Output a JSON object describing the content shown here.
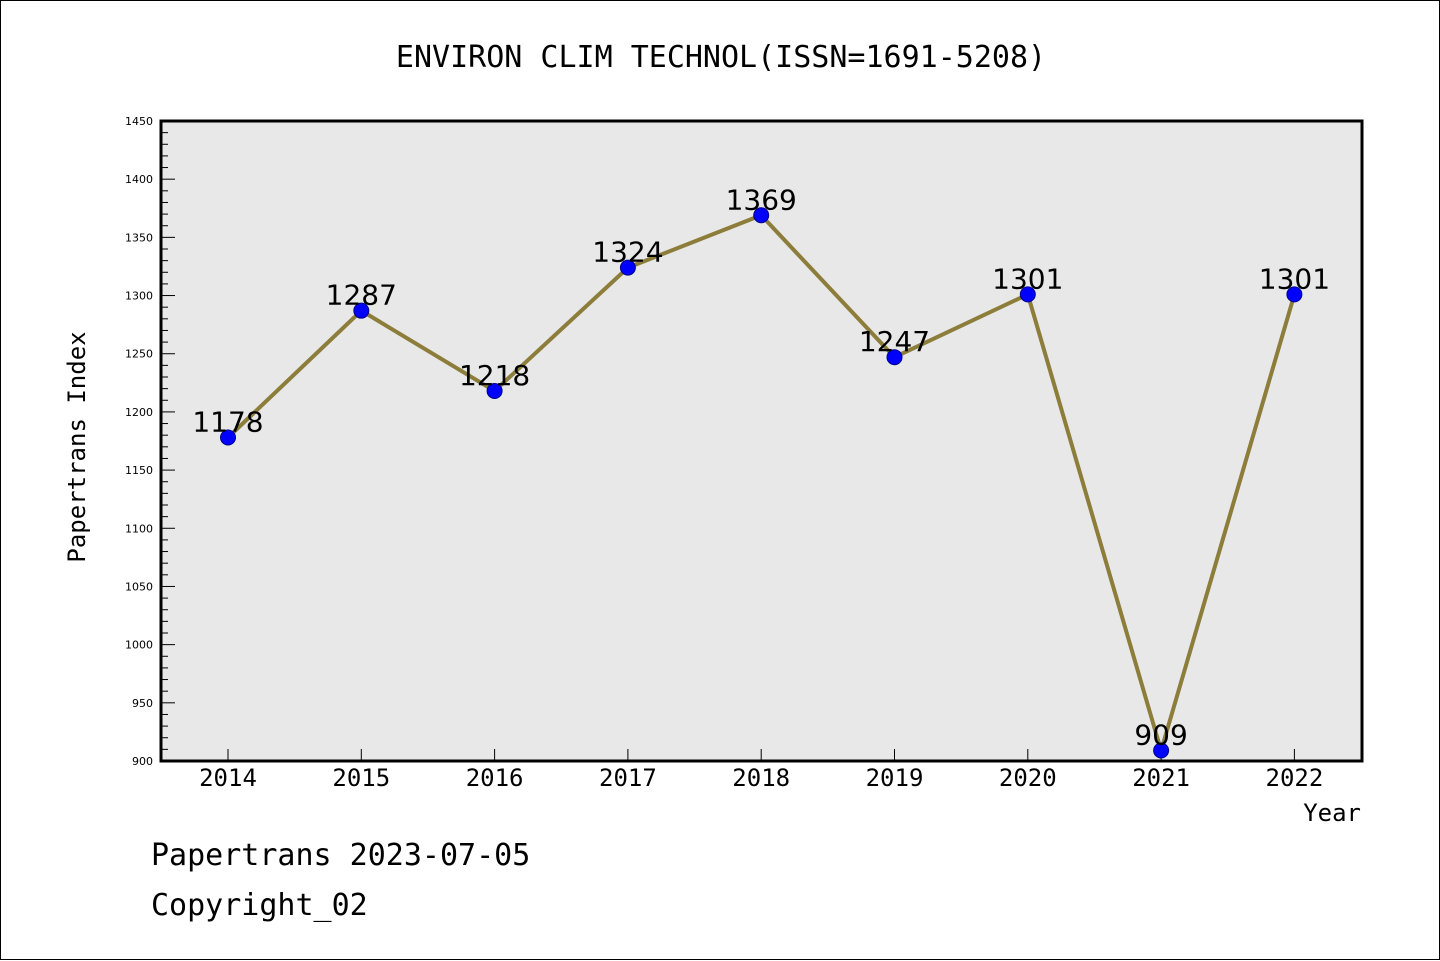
{
  "chart_data": {
    "type": "line",
    "title": "ENVIRON CLIM TECHNOL(ISSN=1691-5208)",
    "xlabel": "Year",
    "ylabel": "Papertrans Index",
    "categories": [
      "2014",
      "2015",
      "2016",
      "2017",
      "2018",
      "2019",
      "2020",
      "2021",
      "2022"
    ],
    "series": [
      {
        "values": [
          1178,
          1287,
          1218,
          1324,
          1369,
          1247,
          1301,
          909,
          1301
        ]
      }
    ],
    "data_labels": [
      "1178",
      "1287",
      "1218",
      "1324",
      "1369",
      "1247",
      "1301",
      "909",
      "1301"
    ],
    "ylim": [
      900,
      1450
    ],
    "yticks": [
      900,
      950,
      1000,
      1050,
      1100,
      1150,
      1200,
      1250,
      1300,
      1350,
      1400,
      1450
    ],
    "ytick_labels": [
      "900",
      "950",
      "1000",
      "1050",
      "1100",
      "1150",
      "1200",
      "1250",
      "1300",
      "1350",
      "1400",
      "1450"
    ],
    "grid": false,
    "plot_background": "#e8e8e8",
    "line_color": "#8c7d3a",
    "marker_color": "#0000ff"
  },
  "footer": {
    "source": "Papertrans 2023-07-05",
    "copyright": "Copyright_02"
  }
}
